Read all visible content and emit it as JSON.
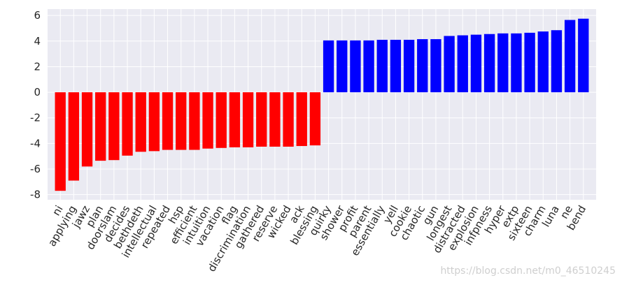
{
  "chart_data": {
    "type": "bar",
    "categories": [
      "ni",
      "applying",
      "jawz",
      "plan",
      "doorslam",
      "decides",
      "bethdeth",
      "intellectual",
      "repeated",
      "hsp",
      "efficient",
      "intuition",
      "vacation",
      "flag",
      "discrimination",
      "gathered",
      "reserve",
      "wicked",
      "ack",
      "blessing",
      "quirky",
      "shower",
      "profit",
      "parent",
      "essentially",
      "yell",
      "cookie",
      "chaotic",
      "gun",
      "longest",
      "distracted",
      "explosion",
      "infpness",
      "hyper",
      "extp",
      "sixteen",
      "charm",
      "luna",
      "ne",
      "bend"
    ],
    "values": [
      -7.7,
      -6.9,
      -5.8,
      -5.35,
      -5.3,
      -4.95,
      -4.65,
      -4.6,
      -4.5,
      -4.5,
      -4.5,
      -4.4,
      -4.35,
      -4.3,
      -4.3,
      -4.25,
      -4.25,
      -4.25,
      -4.2,
      -4.15,
      4.05,
      4.05,
      4.05,
      4.05,
      4.1,
      4.1,
      4.1,
      4.15,
      4.15,
      4.4,
      4.45,
      4.5,
      4.55,
      4.6,
      4.6,
      4.65,
      4.75,
      4.85,
      5.65,
      5.75
    ],
    "colors": [
      "#ff0000",
      "#ff0000",
      "#ff0000",
      "#ff0000",
      "#ff0000",
      "#ff0000",
      "#ff0000",
      "#ff0000",
      "#ff0000",
      "#ff0000",
      "#ff0000",
      "#ff0000",
      "#ff0000",
      "#ff0000",
      "#ff0000",
      "#ff0000",
      "#ff0000",
      "#ff0000",
      "#ff0000",
      "#ff0000",
      "#0000ff",
      "#0000ff",
      "#0000ff",
      "#0000ff",
      "#0000ff",
      "#0000ff",
      "#0000ff",
      "#0000ff",
      "#0000ff",
      "#0000ff",
      "#0000ff",
      "#0000ff",
      "#0000ff",
      "#0000ff",
      "#0000ff",
      "#0000ff",
      "#0000ff",
      "#0000ff",
      "#0000ff",
      "#0000ff"
    ],
    "ylim": [
      -8.4,
      6.5
    ],
    "yticks": [
      -8,
      -6,
      -4,
      -2,
      0,
      2,
      4,
      6
    ],
    "grid": true,
    "watermark": "https://blog.csdn.net/m0_46510245"
  }
}
